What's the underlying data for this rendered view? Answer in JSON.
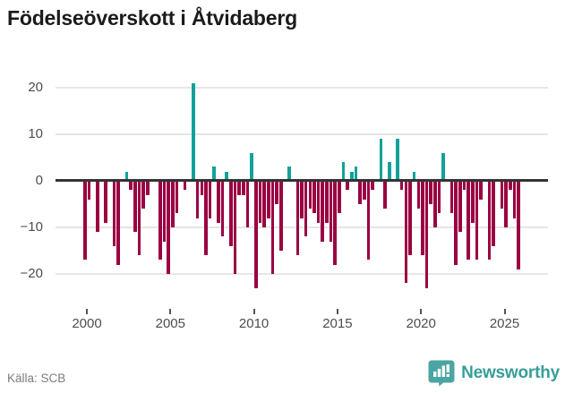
{
  "header": {
    "title": "Födelseöverskott i Åtvidaberg"
  },
  "footer": {
    "source": "Källa: SCB",
    "brand": "Newsworthy",
    "brand_icon": "bar-chart-exclamation-badge"
  },
  "chart_data": {
    "type": "bar",
    "title": "Födelseöverskott i Åtvidaberg",
    "frequency": "quarterly",
    "start": "2000-Q1",
    "end": "2026-Q1",
    "values": [
      -17,
      -4,
      0,
      -11,
      0,
      -9,
      0,
      -14,
      -18,
      0,
      2,
      -2,
      -11,
      -16,
      -6,
      -3,
      0,
      0,
      -17,
      -13,
      -20,
      -10,
      -7,
      0,
      -2,
      0,
      21,
      -8,
      -3,
      -16,
      -8,
      3,
      -9,
      -12,
      2,
      -14,
      -20,
      -3,
      -3,
      -10,
      6,
      -23,
      -9,
      -10,
      -8,
      -20,
      -5,
      -15,
      0,
      3,
      0,
      -16,
      -8,
      -12,
      -6,
      -7,
      -9,
      -13,
      -9,
      -13,
      -18,
      -7,
      4,
      -2,
      2,
      3,
      -5,
      -4,
      -17,
      -2,
      0,
      9,
      -6,
      4,
      0,
      9,
      -2,
      -22,
      -16,
      2,
      -6,
      -16,
      -23,
      -5,
      -10,
      -7,
      6,
      0,
      -7,
      -18,
      -11,
      -2,
      -17,
      -9,
      -17,
      -4,
      0,
      -17,
      -14,
      0,
      -6,
      -10,
      -2,
      -8,
      -19
    ],
    "y_ticks": [
      20,
      10,
      0,
      -10,
      -20
    ],
    "x_ticks": [
      2000,
      2005,
      2010,
      2015,
      2020,
      2025
    ],
    "ylim": [
      -25,
      22
    ],
    "grid": true,
    "legend": "none",
    "colors": {
      "positive": "#12A19A",
      "negative": "#9A0042",
      "axis": "#333333"
    }
  }
}
